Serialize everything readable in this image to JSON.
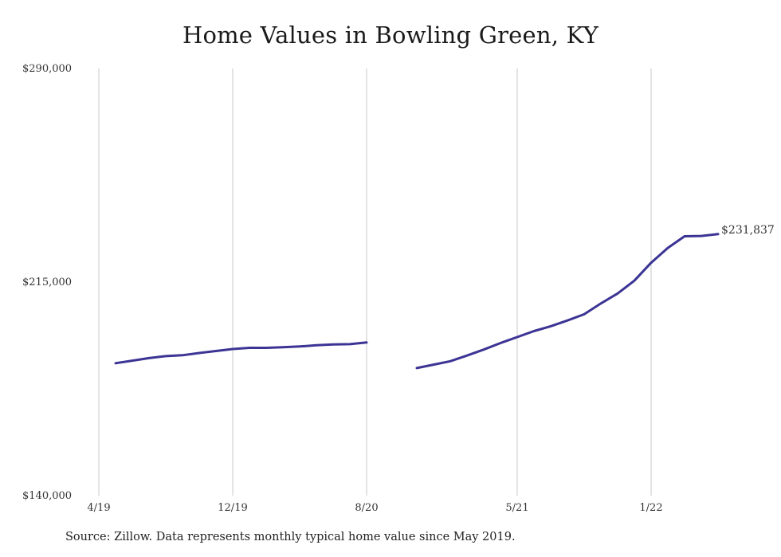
{
  "chart_data": {
    "type": "line",
    "title": "Home Values in Bowling Green, KY",
    "xlabel": "",
    "ylabel": "",
    "ylim": [
      140000,
      290000
    ],
    "y_ticks": [
      "$290,000",
      "$215,000",
      "$140,000"
    ],
    "y_tick_values": [
      290000,
      215000,
      140000
    ],
    "x_ticks": [
      "4/19",
      "12/19",
      "8/20",
      "5/21",
      "1/22"
    ],
    "x_tick_dates": [
      "2019-04",
      "2019-12",
      "2020-08",
      "2021-05",
      "2022-01"
    ],
    "grid": "vertical",
    "series": [
      {
        "color": "#3c3494",
        "points": [
          {
            "x": "2019-05",
            "y": 186500
          },
          {
            "x": "2019-06",
            "y": 187400
          },
          {
            "x": "2019-07",
            "y": 188300
          },
          {
            "x": "2019-08",
            "y": 189000
          },
          {
            "x": "2019-09",
            "y": 189300
          },
          {
            "x": "2019-10",
            "y": 190100
          },
          {
            "x": "2019-11",
            "y": 190800
          },
          {
            "x": "2019-12",
            "y": 191500
          },
          {
            "x": "2020-01",
            "y": 191900
          },
          {
            "x": "2020-02",
            "y": 191900
          },
          {
            "x": "2020-03",
            "y": 192100
          },
          {
            "x": "2020-04",
            "y": 192400
          },
          {
            "x": "2020-05",
            "y": 192800
          },
          {
            "x": "2020-06",
            "y": 193100
          },
          {
            "x": "2020-07",
            "y": 193200
          },
          {
            "x": "2020-08",
            "y": 193800
          },
          {
            "x": "2020-09",
            "y": null
          },
          {
            "x": "2020-10",
            "y": null
          },
          {
            "x": "2020-11",
            "y": 184800
          },
          {
            "x": "2020-12",
            "y": 186000
          },
          {
            "x": "2021-01",
            "y": 187200
          },
          {
            "x": "2021-02",
            "y": 189200
          },
          {
            "x": "2021-03",
            "y": 191300
          },
          {
            "x": "2021-04",
            "y": 193600
          },
          {
            "x": "2021-05",
            "y": 195700
          },
          {
            "x": "2021-06",
            "y": 197800
          },
          {
            "x": "2021-07",
            "y": 199500
          },
          {
            "x": "2021-08",
            "y": 201500
          },
          {
            "x": "2021-09",
            "y": 203700
          },
          {
            "x": "2021-10",
            "y": 207500
          },
          {
            "x": "2021-11",
            "y": 211000
          },
          {
            "x": "2021-12",
            "y": 215500
          },
          {
            "x": "2022-01",
            "y": 221800
          },
          {
            "x": "2022-02",
            "y": 227000
          },
          {
            "x": "2022-03",
            "y": 231100
          },
          {
            "x": "2022-04",
            "y": 231200
          },
          {
            "x": "2022-05",
            "y": 231837
          }
        ]
      }
    ],
    "end_label": "$231,837"
  },
  "source_note": "Source: Zillow. Data represents monthly typical home value since May 2019."
}
